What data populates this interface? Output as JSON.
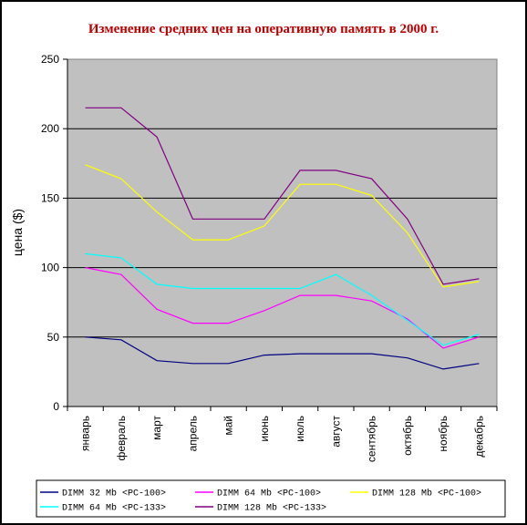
{
  "chart_data": {
    "type": "line",
    "title": "Изменение средних цен на оперативную память в 2000 г.",
    "ylabel": "цена ($)",
    "xlabel": "",
    "ylim": [
      0,
      250
    ],
    "yticks": [
      0,
      50,
      100,
      150,
      200,
      250
    ],
    "grid": true,
    "legend_position": "bottom",
    "categories": [
      "январь",
      "февраль",
      "март",
      "апрель",
      "май",
      "июнь",
      "июль",
      "август",
      "сентябрь",
      "октябрь",
      "ноябрь",
      "декабрь"
    ],
    "series": [
      {
        "name": "DIMM 32 Mb <PC-100>",
        "color": "#000080",
        "values": [
          50,
          48,
          33,
          31,
          31,
          37,
          38,
          38,
          38,
          35,
          27,
          31
        ]
      },
      {
        "name": "DIMM 64 Mb <PC-100>",
        "color": "#ff00ff",
        "values": [
          100,
          95,
          70,
          60,
          60,
          69,
          80,
          80,
          76,
          63,
          42,
          50
        ]
      },
      {
        "name": "DIMM 128 Mb <PC-100>",
        "color": "#ffff00",
        "values": [
          174,
          164,
          140,
          120,
          120,
          130,
          160,
          160,
          152,
          125,
          86,
          90
        ]
      },
      {
        "name": "DIMM 64 Mb <PC-133>",
        "color": "#00ffff",
        "values": [
          110,
          107,
          88,
          85,
          85,
          85,
          85,
          95,
          80,
          62,
          44,
          52
        ]
      },
      {
        "name": "DIMM 128 Mb <PC-133>",
        "color": "#800080",
        "values": [
          215,
          215,
          194,
          135,
          135,
          135,
          170,
          170,
          164,
          135,
          88,
          92
        ]
      }
    ]
  }
}
